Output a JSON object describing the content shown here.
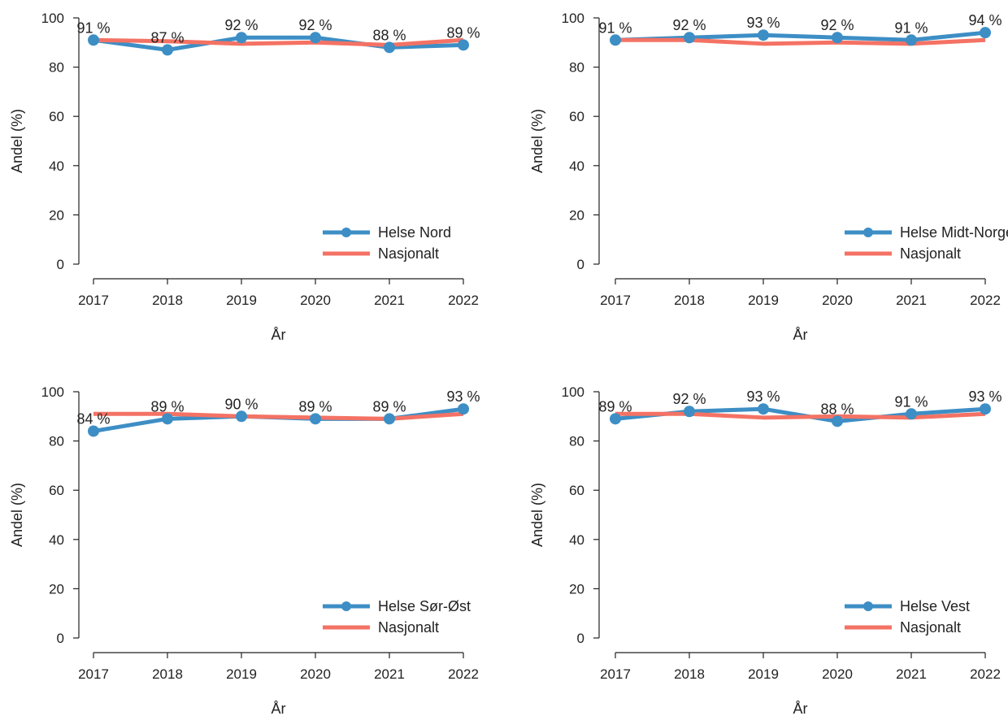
{
  "colors": {
    "region": "#3d8ec5",
    "national": "#f47264",
    "axis": "#222222"
  },
  "chart_data": [
    {
      "type": "line",
      "xlabel": "År",
      "ylabel": "Andel (%)",
      "ylim": [
        0,
        100
      ],
      "yticks": [
        0,
        20,
        40,
        60,
        80,
        100
      ],
      "x": [
        "2017",
        "2018",
        "2019",
        "2020",
        "2021",
        "2022"
      ],
      "legend_position": "bottom-right",
      "series": [
        {
          "name": "Helse Nord",
          "values": [
            91,
            87,
            92,
            92,
            88,
            89
          ],
          "labels": [
            "91 %",
            "87 %",
            "92 %",
            "92 %",
            "88 %",
            "89 %"
          ]
        },
        {
          "name": "Nasjonalt",
          "values": [
            91,
            90.5,
            89.5,
            90,
            89,
            91
          ]
        }
      ]
    },
    {
      "type": "line",
      "xlabel": "År",
      "ylabel": "Andel (%)",
      "ylim": [
        0,
        100
      ],
      "yticks": [
        0,
        20,
        40,
        60,
        80,
        100
      ],
      "x": [
        "2017",
        "2018",
        "2019",
        "2020",
        "2021",
        "2022"
      ],
      "legend_position": "bottom-right",
      "series": [
        {
          "name": "Helse Midt-Norge",
          "values": [
            91,
            92,
            93,
            92,
            91,
            94
          ],
          "labels": [
            "91 %",
            "92 %",
            "93 %",
            "92 %",
            "91 %",
            "94 %"
          ]
        },
        {
          "name": "Nasjonalt",
          "values": [
            91,
            91,
            89.5,
            90,
            89.5,
            91
          ]
        }
      ]
    },
    {
      "type": "line",
      "xlabel": "År",
      "ylabel": "Andel (%)",
      "ylim": [
        0,
        100
      ],
      "yticks": [
        0,
        20,
        40,
        60,
        80,
        100
      ],
      "x": [
        "2017",
        "2018",
        "2019",
        "2020",
        "2021",
        "2022"
      ],
      "legend_position": "bottom-right",
      "series": [
        {
          "name": "Helse Sør-Øst",
          "values": [
            84,
            89,
            90,
            89,
            89,
            93
          ],
          "labels": [
            "84 %",
            "89 %",
            "90 %",
            "89 %",
            "89 %",
            "93 %"
          ]
        },
        {
          "name": "Nasjonalt",
          "values": [
            91,
            91,
            90,
            89.5,
            89,
            91
          ]
        }
      ]
    },
    {
      "type": "line",
      "xlabel": "År",
      "ylabel": "Andel (%)",
      "ylim": [
        0,
        100
      ],
      "yticks": [
        0,
        20,
        40,
        60,
        80,
        100
      ],
      "x": [
        "2017",
        "2018",
        "2019",
        "2020",
        "2021",
        "2022"
      ],
      "legend_position": "bottom-right",
      "series": [
        {
          "name": "Helse Vest",
          "values": [
            89,
            92,
            93,
            88,
            91,
            93
          ],
          "labels": [
            "89 %",
            "92 %",
            "93 %",
            "88 %",
            "91 %",
            "93 %"
          ]
        },
        {
          "name": "Nasjonalt",
          "values": [
            91,
            91,
            89.5,
            90,
            89.5,
            91
          ]
        }
      ]
    }
  ]
}
